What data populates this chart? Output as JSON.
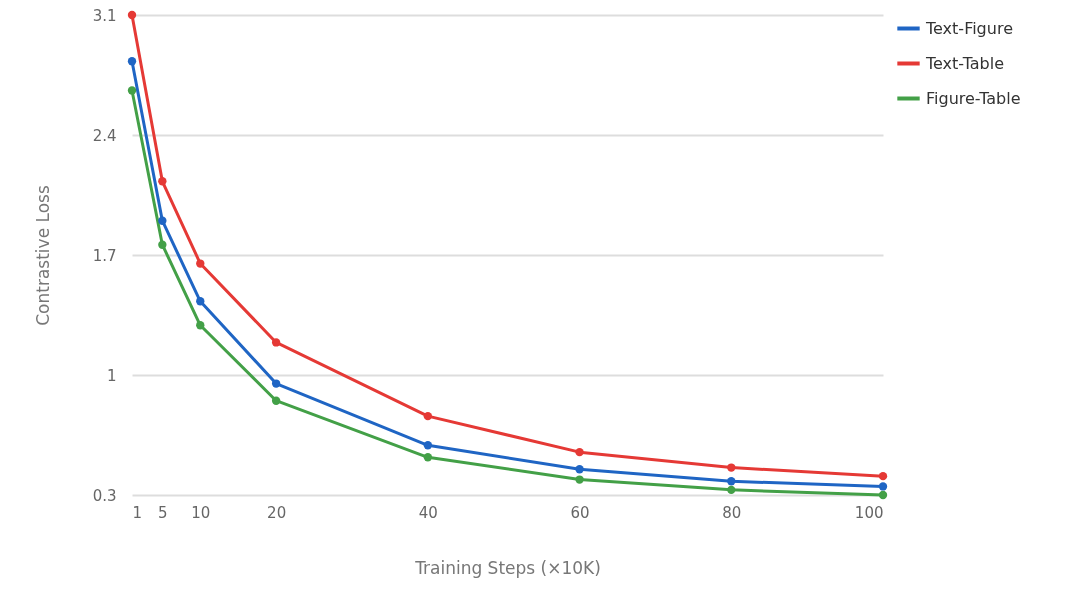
{
  "chart_data": {
    "type": "line",
    "xlabel": "Training Steps (×10K)",
    "ylabel": "Contrastive Loss",
    "x": [
      1,
      5,
      10,
      20,
      40,
      60,
      80,
      100
    ],
    "series": [
      {
        "name": "Text-Figure",
        "color": "#1f65c4",
        "values": [
          2.83,
          1.9,
          1.43,
          0.95,
          0.59,
          0.45,
          0.38,
          0.35
        ]
      },
      {
        "name": "Text-Table",
        "color": "#e53935",
        "values": [
          3.1,
          2.13,
          1.65,
          1.19,
          0.76,
          0.55,
          0.46,
          0.41
        ]
      },
      {
        "name": "Figure-Table",
        "color": "#43a047",
        "values": [
          2.66,
          1.76,
          1.29,
          0.85,
          0.52,
          0.39,
          0.33,
          0.3
        ]
      }
    ],
    "xlim": [
      1,
      100
    ],
    "xticks": [
      1,
      5,
      10,
      20,
      40,
      60,
      80,
      100
    ],
    "ylim": [
      0.3,
      3.1
    ],
    "yticks": [
      0.3,
      1,
      1.7,
      2.4,
      3.1
    ],
    "grid": "y",
    "legend": "top right",
    "marker": "circle",
    "line_style": "solid"
  }
}
